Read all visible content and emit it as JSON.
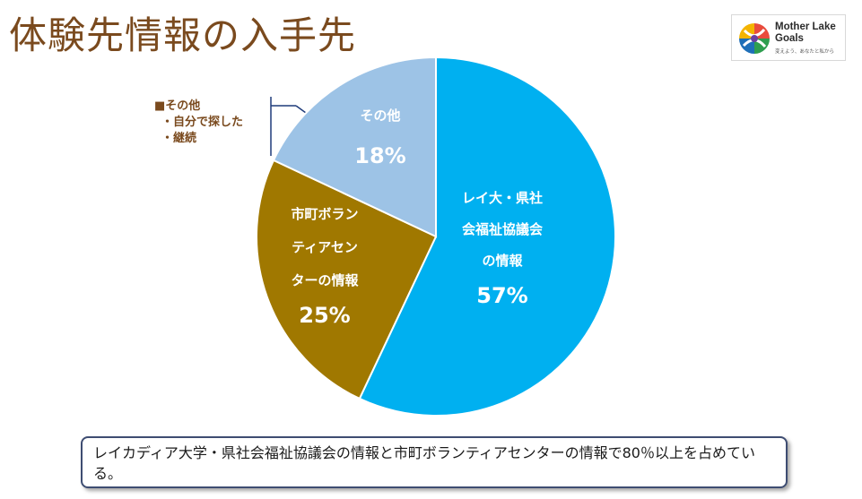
{
  "header": {
    "title": "体験先情報の入手先"
  },
  "logo": {
    "name_line1": "Mother Lake",
    "name_line2": "Goals",
    "tagline": "変えよう、あなたと私から"
  },
  "legend_note": {
    "heading": "■その他",
    "items": [
      "・自分で探した",
      "・継続"
    ]
  },
  "chart_data": {
    "type": "pie",
    "title": "体験先情報の入手先",
    "start_angle_deg": 0,
    "direction": "clockwise",
    "slices": [
      {
        "label_lines": [
          "レイ大・県社",
          "会福祉協議会",
          "の情報"
        ],
        "value": 57,
        "value_label": "57%",
        "color": "#00b0f0"
      },
      {
        "label_lines": [
          "市町ボラン",
          "ティアセン",
          "ターの情報"
        ],
        "value": 25,
        "value_label": "25%",
        "color": "#a07800"
      },
      {
        "label_lines": [
          "その他"
        ],
        "value": 18,
        "value_label": "18%",
        "color": "#9dc3e6"
      }
    ]
  },
  "summary": {
    "text": "レイカディア大学・県社会福祉協議会の情報と市町ボランティアセンターの情報で80％以上を占めている。"
  }
}
